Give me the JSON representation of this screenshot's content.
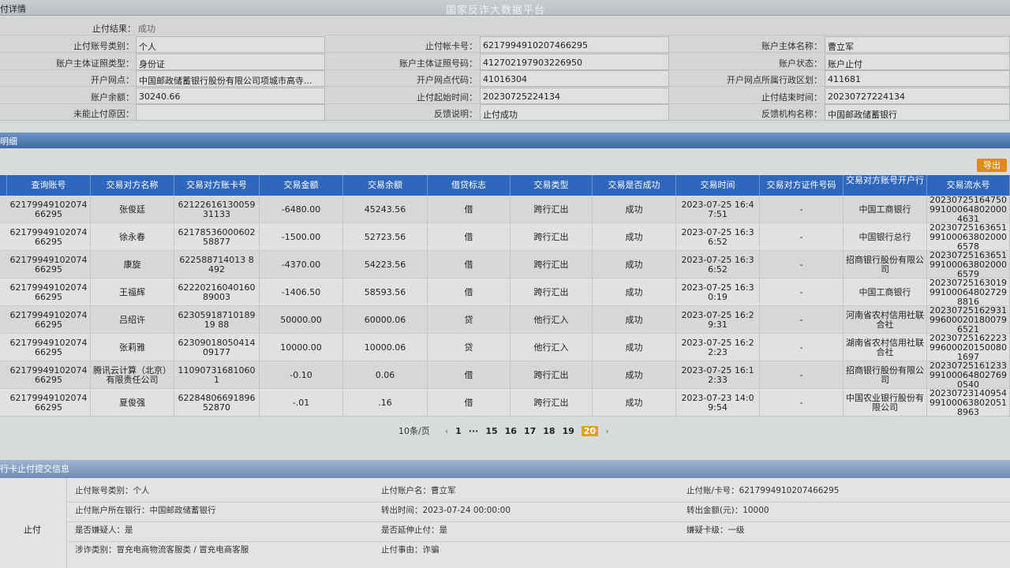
{
  "header": {
    "section": "付详情",
    "title": "国家反诈大数据平台"
  },
  "detail": {
    "result_label": "止付结果：",
    "result_value": "成功",
    "rows": [
      [
        {
          "l": "止付账号类别：",
          "v": "个人"
        },
        {
          "l": "止付帐卡号：",
          "v": "6217994910207466295"
        },
        {
          "l": "账户主体名称：",
          "v": "曹立军"
        }
      ],
      [
        {
          "l": "账户主体证照类型：",
          "v": "身份证"
        },
        {
          "l": "账户主体证照号码：",
          "v": "412702197903226950"
        },
        {
          "l": "账户状态：",
          "v": "账户止付"
        }
      ],
      [
        {
          "l": "开户网点：",
          "v": "中国邮政储蓄银行股份有限公司项城市高寺..."
        },
        {
          "l": "开户网点代码：",
          "v": "41016304"
        },
        {
          "l": "开户网点所属行政区划：",
          "v": "411681"
        }
      ],
      [
        {
          "l": "账户余额：",
          "v": "30240.66"
        },
        {
          "l": "止付起始时间：",
          "v": "20230725224134"
        },
        {
          "l": "止付结束时间：",
          "v": "20230727224134"
        }
      ],
      [
        {
          "l": "未能止付原因：",
          "v": ""
        },
        {
          "l": "反馈说明：",
          "v": "止付成功"
        },
        {
          "l": "反馈机构名称：",
          "v": "中国邮政储蓄银行"
        }
      ]
    ]
  },
  "details_section": {
    "title": "明细",
    "export_label": "导出"
  },
  "table": {
    "columns": [
      "查询账号",
      "交易对方名称",
      "交易对方账卡号",
      "交易金额",
      "交易余额",
      "借贷标志",
      "交易类型",
      "交易是否成功",
      "交易时间",
      "交易对方证件号码",
      "交易对方账号开户行",
      "交易流水号"
    ],
    "rows": [
      [
        "6217994910207466295",
        "张俊廷",
        "6212261613005931133",
        "-6480.00",
        "45243.56",
        "借",
        "跨行汇出",
        "成功",
        "2023-07-25 16:47:51",
        "-",
        "中国工商银行",
        "20230725164750991000648020004631"
      ],
      [
        "6217994910207466295",
        "徐永春",
        "6217853600060258877",
        "-1500.00",
        "52723.56",
        "借",
        "跨行汇出",
        "成功",
        "2023-07-25 16:36:52",
        "-",
        "中国银行总行",
        "20230725163651991000638020006578"
      ],
      [
        "6217994910207466295",
        "康旋",
        "622588714013 8492",
        "-4370.00",
        "54223.56",
        "借",
        "跨行汇出",
        "成功",
        "2023-07-25 16:36:52",
        "-",
        "招商银行股份有限公司",
        "20230725163651991000638020006579"
      ],
      [
        "6217994910207466295",
        "王福辉",
        "6222021604016089003",
        "-1406.50",
        "58593.56",
        "借",
        "跨行汇出",
        "成功",
        "2023-07-25 16:30:19",
        "-",
        "中国工商银行",
        "2023072516301999100064802729 8816"
      ],
      [
        "6217994910207466295",
        "吕绍许",
        "6230591871018919 88",
        "50000.00",
        "60000.06",
        "贷",
        "他行汇入",
        "成功",
        "2023-07-25 16:29:31",
        "-",
        "河南省农村信用社联合社",
        "2023072516293199600020180079 6521"
      ],
      [
        "6217994910207466295",
        "张莉雅",
        "6230901805041409177",
        "10000.00",
        "10000.06",
        "贷",
        "他行汇入",
        "成功",
        "2023-07-25 16:22:23",
        "-",
        "湖南省农村信用社联合社",
        "2023072516222399600020150080 1697"
      ],
      [
        "6217994910207466295",
        "腾讯云计算（北京）有限责任公司",
        "110907316810601",
        "-0.10",
        "0.06",
        "借",
        "跨行汇出",
        "成功",
        "2023-07-25 16:12:33",
        "-",
        "招商银行股份有限公司",
        "2023072516123399100064802769 0540"
      ],
      [
        "6217994910207466295",
        "夏俊强",
        "6228480669189652870",
        "-.01",
        ".16",
        "借",
        "跨行汇出",
        "成功",
        "2023-07-23 14:09:54",
        "-",
        "中国农业银行股份有限公司",
        "2023072314095499100063802051 8963"
      ]
    ]
  },
  "pagination": {
    "page_size": "10条/页",
    "pages": [
      "1",
      "···",
      "15",
      "16",
      "17",
      "18",
      "19",
      "20"
    ],
    "current": "20",
    "prev": "‹",
    "next": "›"
  },
  "submit_section": {
    "title": "行卡止付提交信息",
    "side_label": "止付",
    "items": [
      [
        "止付账号类别：个人",
        "止付账户名：曹立军",
        "止付账/卡号：6217994910207466295"
      ],
      [
        "止付账户所在银行：中国邮政储蓄银行",
        "转出时间：2023-07-24 00:00:00",
        "转出金额(元)：10000"
      ],
      [
        "是否嫌疑人：是",
        "是否延伸止付：是",
        "嫌疑卡级：一级"
      ],
      [
        "涉诈类别：冒充电商物流客服类 / 冒充电商客服",
        "止付事由：诈骗",
        ""
      ]
    ]
  }
}
